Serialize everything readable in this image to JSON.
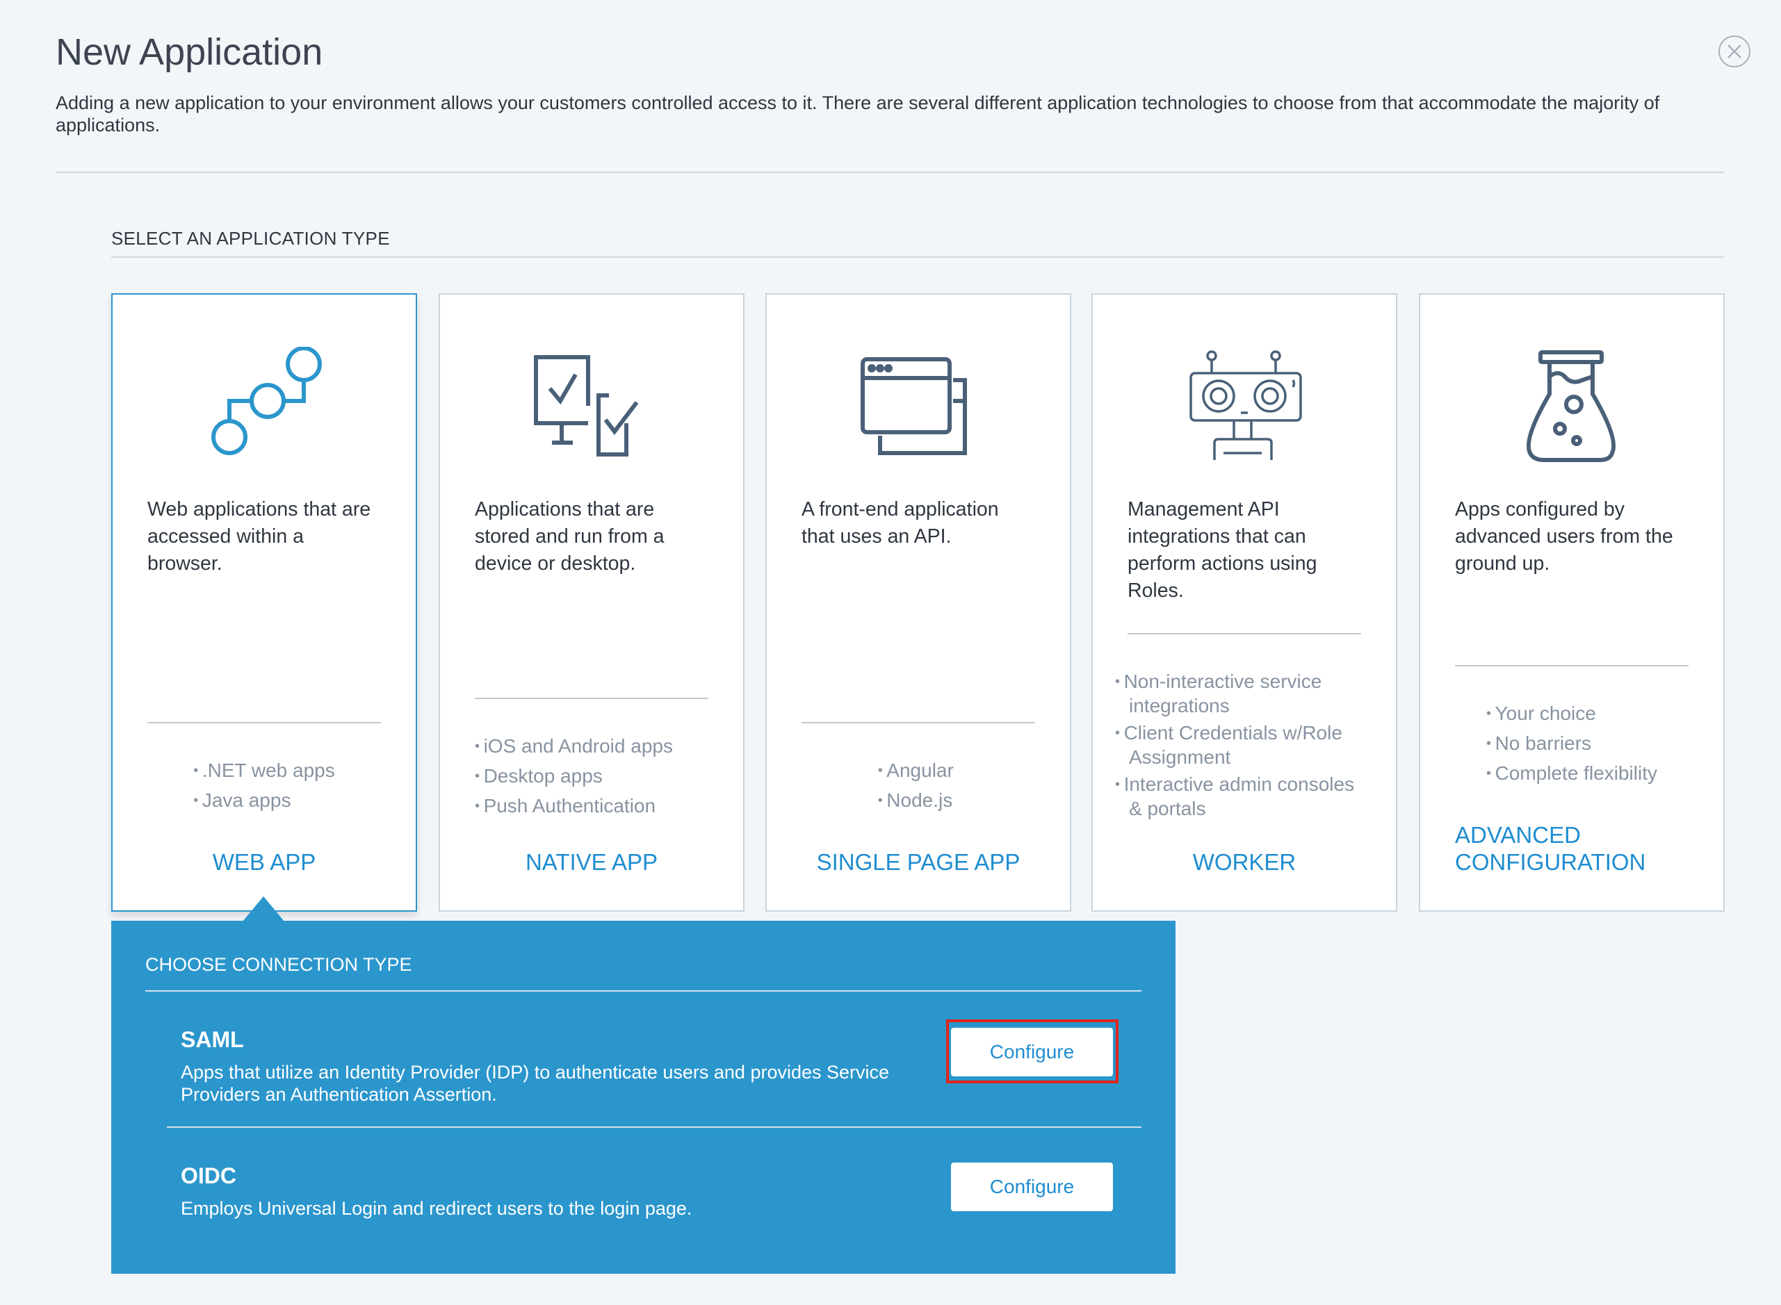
{
  "header": {
    "title": "New Application",
    "close_icon": "close-circle-icon",
    "description": "Adding a new application to your environment allows your customers controlled access to it. There are several different application technologies to choose from that accommodate the majority of applications."
  },
  "section_title": "SELECT AN APPLICATION TYPE",
  "cards": [
    {
      "icon": "web-app-nodes-icon",
      "description": "Web applications that are accessed within a browser.",
      "bullets": [
        ".NET web apps",
        "Java apps"
      ],
      "label": "WEB APP",
      "selected": true
    },
    {
      "icon": "native-app-devices-icon",
      "description": "Applications that are stored and run from a device or desktop.",
      "bullets": [
        "iOS and Android apps",
        "Desktop apps",
        "Push Authentication"
      ],
      "label": "NATIVE APP",
      "selected": false
    },
    {
      "icon": "single-page-browser-icon",
      "description": "A front-end application that uses an API.",
      "bullets": [
        "Angular",
        "Node.js"
      ],
      "label": "SINGLE PAGE APP",
      "selected": false
    },
    {
      "icon": "worker-robot-icon",
      "description": "Management API integrations that can perform actions using Roles.",
      "bullets": [
        "Non-interactive service integrations",
        "Client Credentials w/Role Assignment",
        "Interactive admin consoles & portals"
      ],
      "label": "WORKER",
      "selected": false
    },
    {
      "icon": "advanced-flask-icon",
      "description": "Apps configured by advanced users from the ground up.",
      "bullets": [
        "Your choice",
        "No barriers",
        "Complete flexibility"
      ],
      "label": "ADVANCED CONFIGURATION",
      "selected": false
    }
  ],
  "connection": {
    "title": "CHOOSE CONNECTION TYPE",
    "options": [
      {
        "name": "SAML",
        "description": "Apps that utilize an Identity Provider (IDP) to authenticate users and provides Service Providers an Authentication Assertion.",
        "button": "Configure",
        "highlighted": true
      },
      {
        "name": "OIDC",
        "description": "Employs Universal Login and redirect users to the login page.",
        "button": "Configure",
        "highlighted": false
      }
    ]
  },
  "colors": {
    "accent": "#2b96cc",
    "link": "#1f8dd0",
    "highlight": "#e0241b",
    "icon": "#4a6078"
  }
}
